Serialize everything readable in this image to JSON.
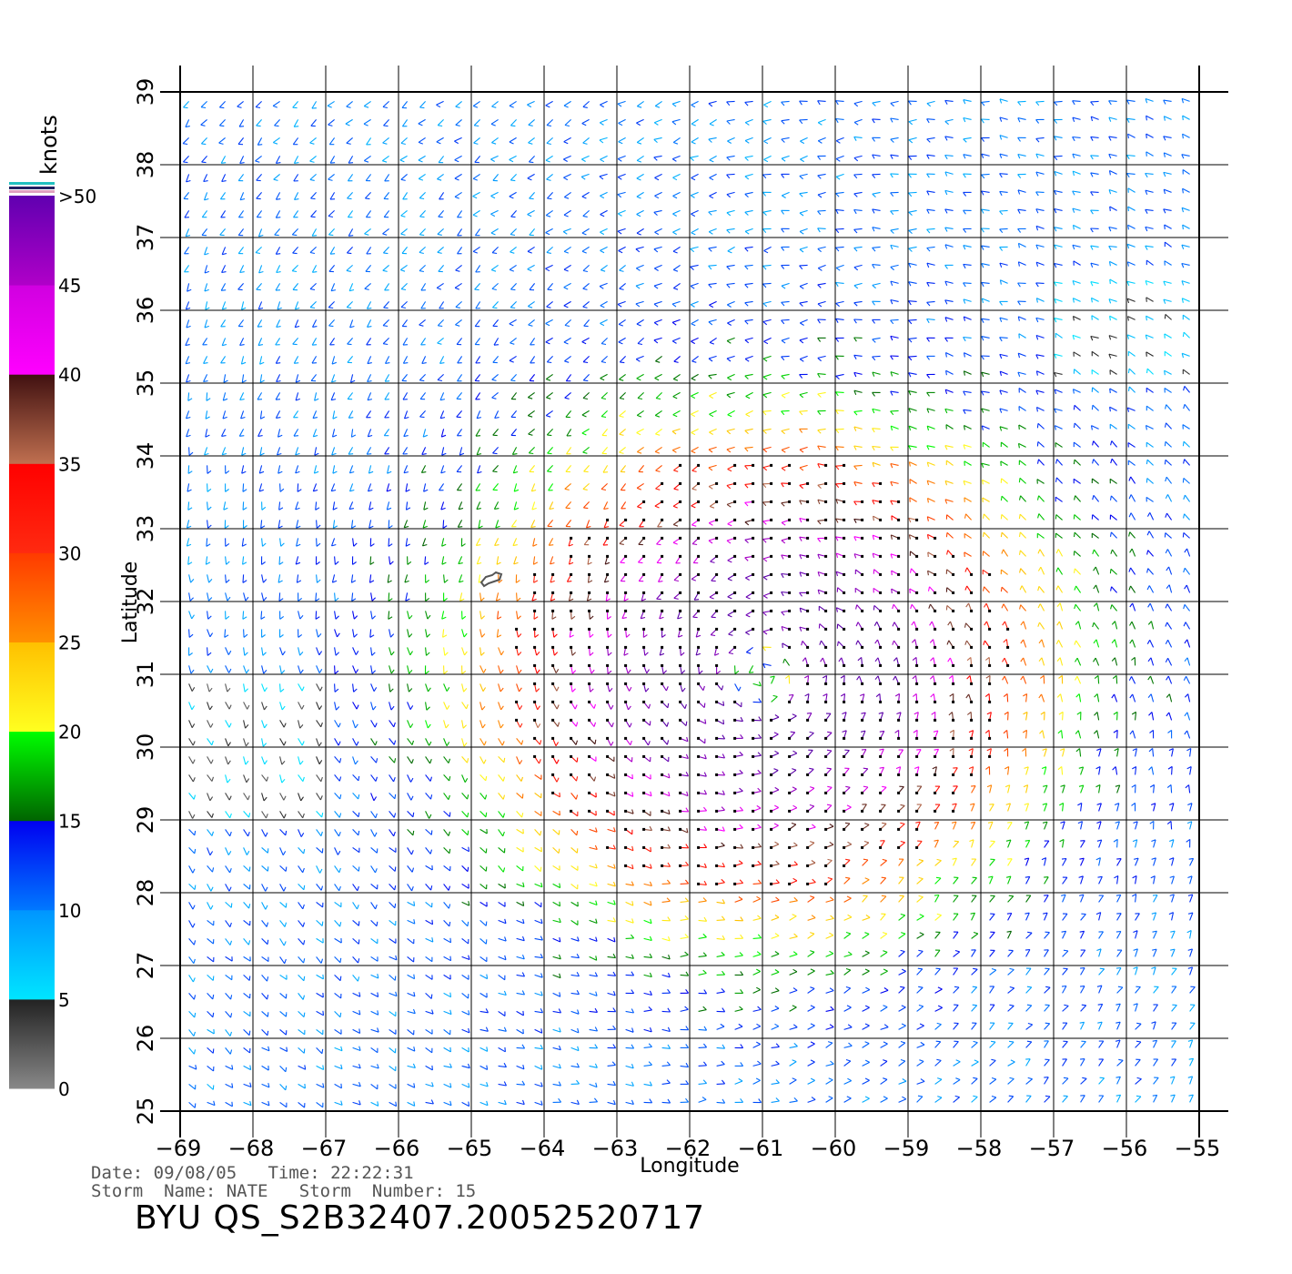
{
  "chart_data": {
    "type": "wind_barb_map",
    "xlabel": "Longitude",
    "ylabel": "Latitude",
    "xlim": [
      -69,
      -55
    ],
    "ylim": [
      25,
      39
    ],
    "x_ticks": [
      "−69",
      "−68",
      "−67",
      "−66",
      "−65",
      "−64",
      "−63",
      "−62",
      "−61",
      "−60",
      "−59",
      "−58",
      "−57",
      "−56",
      "−55"
    ],
    "y_ticks": [
      "25",
      "26",
      "27",
      "28",
      "29",
      "30",
      "31",
      "32",
      "33",
      "34",
      "35",
      "36",
      "37",
      "38",
      "39"
    ],
    "grid": true,
    "storm_center": {
      "lon": -61.0,
      "lat": 31.0
    },
    "island_outline": {
      "lon": -64.7,
      "lat": 32.3
    },
    "colorbar": {
      "units": "knots",
      "labels": [
        "0",
        "5",
        "10",
        "15",
        "20",
        "25",
        "30",
        "35",
        "40",
        "45",
        ">50"
      ],
      "bands": [
        {
          "min": 0,
          "max": 5,
          "colors": [
            "#888888",
            "#222222"
          ]
        },
        {
          "min": 5,
          "max": 10,
          "colors": [
            "#00e5ff",
            "#0095ff"
          ]
        },
        {
          "min": 10,
          "max": 15,
          "colors": [
            "#0078ff",
            "#0000f0"
          ]
        },
        {
          "min": 15,
          "max": 20,
          "colors": [
            "#006400",
            "#00ff00"
          ]
        },
        {
          "min": 20,
          "max": 25,
          "colors": [
            "#ffff20",
            "#ffc000"
          ]
        },
        {
          "min": 25,
          "max": 30,
          "colors": [
            "#ff9000",
            "#ff3a00"
          ]
        },
        {
          "min": 30,
          "max": 35,
          "colors": [
            "#ff2a10",
            "#ff0000"
          ]
        },
        {
          "min": 35,
          "max": 40,
          "colors": [
            "#c07050",
            "#401010"
          ]
        },
        {
          "min": 40,
          "max": 45,
          "colors": [
            "#ff00ff",
            "#d000e0"
          ]
        },
        {
          "min": 45,
          "max": 50,
          "colors": [
            "#b000c8",
            "#6000b0"
          ]
        }
      ]
    }
  },
  "info": {
    "date_line": "Date: 09/08/05   Time: 22:22:31",
    "storm_line": "Storm  Name: NATE   Storm  Number: 15",
    "file_id": "BYU  QS_S2B32407.20052520717"
  }
}
